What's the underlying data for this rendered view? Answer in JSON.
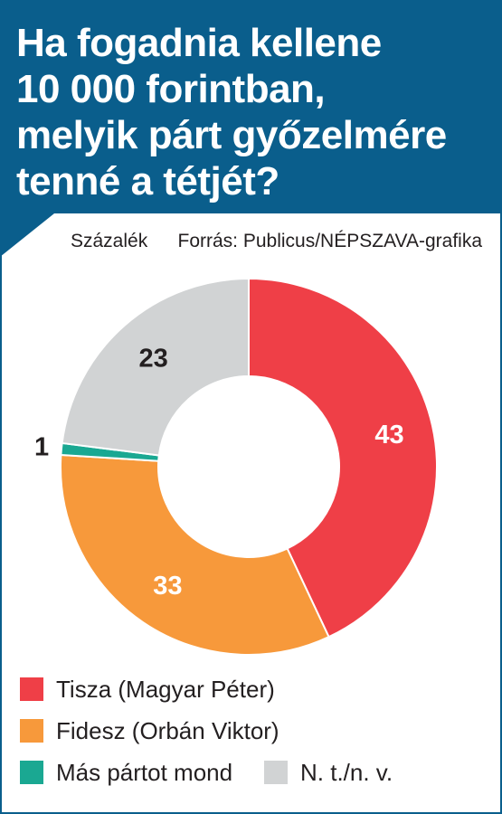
{
  "title": "Ha fogadnia kellene 10 000 forintban, melyik pártgyőzelmére tenné a tétjét?",
  "title_lines": [
    "Ha fogadnia kellene",
    "10 000 forintban,",
    "melyik párt győzelmére",
    "tenné a tétjét?"
  ],
  "unit_label": "Százalék",
  "source": "Forrás: Publicus/NÉPSZAVA-grafika",
  "colors": {
    "header": "#0a5e8c",
    "tisza": "#ef3f47",
    "fidesz": "#f7993b",
    "mas": "#1aa892",
    "nt": "#d1d3d4"
  },
  "chart_data": {
    "type": "pie",
    "donut": true,
    "unit": "Százalék",
    "series": [
      {
        "name": "Tisza (Magyar Péter)",
        "value": 43,
        "label": "43",
        "color": "#ef3f47",
        "label_color": "#ffffff"
      },
      {
        "name": "Fidesz (Orbán Viktor)",
        "value": 33,
        "label": "33",
        "color": "#f7993b",
        "label_color": "#ffffff"
      },
      {
        "name": "Más pártot mond",
        "value": 1,
        "label": "1",
        "color": "#1aa892",
        "label_color": "#231f20"
      },
      {
        "name": "N. t./n. v.",
        "value": 23,
        "label": "23",
        "color": "#d1d3d4",
        "label_color": "#231f20"
      }
    ],
    "legend_position": "bottom"
  },
  "legend": [
    {
      "label": "Tisza (Magyar Péter)",
      "color": "#ef3f47"
    },
    {
      "label": "Fidesz (Orbán Viktor)",
      "color": "#f7993b"
    },
    {
      "label": "Más pártot mond",
      "color": "#1aa892"
    },
    {
      "label": "N. t./n. v.",
      "color": "#d1d3d4"
    }
  ]
}
